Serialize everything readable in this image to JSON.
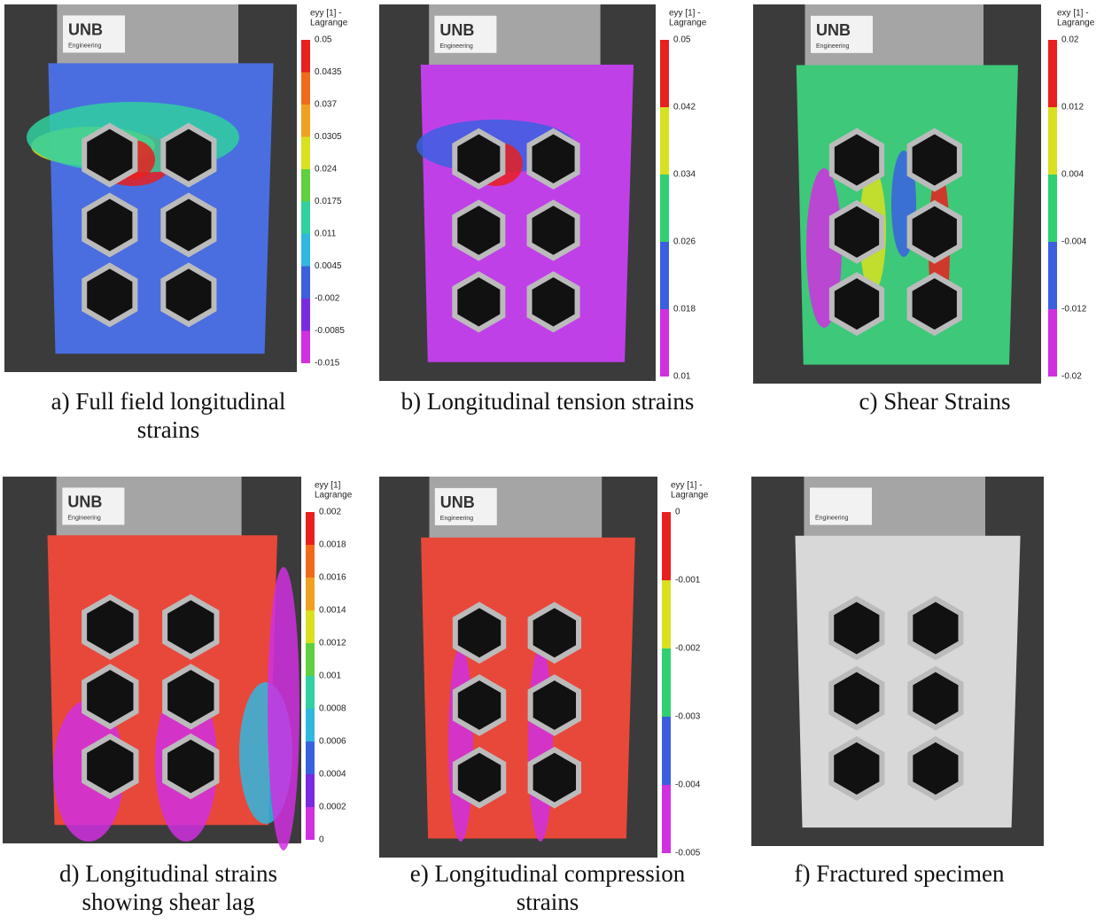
{
  "panels": [
    {
      "caption": [
        "a) Full field longitudinal",
        "strains"
      ],
      "logo": {
        "name": "UNB",
        "sub": "Engineering"
      },
      "legend": {
        "title": [
          "eyy [1] -",
          "Lagrange"
        ],
        "labels": [
          "0.05",
          "0.0435",
          "0.037",
          "0.0305",
          "0.024",
          "0.0175",
          "0.011",
          "0.0045",
          "-0.002",
          "-0.0085",
          "-0.015"
        ]
      }
    },
    {
      "caption": [
        "b) Longitudinal tension strains"
      ],
      "logo": {
        "name": "UNB",
        "sub": "Engineering"
      },
      "legend": {
        "title": [
          "eyy [1] -",
          "Lagrange"
        ],
        "labels": [
          "0.05",
          "0.042",
          "0.034",
          "0.026",
          "0.018",
          "0.01"
        ]
      }
    },
    {
      "caption": [
        "c) Shear Strains"
      ],
      "logo": {
        "name": "UNB",
        "sub": "Engineering"
      },
      "legend": {
        "title": [
          "exy [1] -",
          "Lagrange"
        ],
        "labels": [
          "0.02",
          "0.012",
          "0.004",
          "-0.004",
          "-0.012",
          "-0.02"
        ]
      }
    },
    {
      "caption": [
        "d) Longitudinal strains",
        "showing shear lag"
      ],
      "logo": {
        "name": "UNB",
        "sub": "Engineering"
      },
      "legend": {
        "title": [
          "eyy [1]",
          "Lagrange"
        ],
        "labels": [
          "0.002",
          "0.0018",
          "0.0016",
          "0.0014",
          "0.0012",
          "0.001",
          "0.0008",
          "0.0006",
          "0.0004",
          "0.0002",
          "0"
        ]
      }
    },
    {
      "caption": [
        "e) Longitudinal compression",
        "strains"
      ],
      "logo": {
        "name": "UNB",
        "sub": "Engineering"
      },
      "legend": {
        "title": [
          "eyy [1] -",
          "Lagrange"
        ],
        "labels": [
          "0",
          "-0.001",
          "-0.002",
          "-0.003",
          "-0.004",
          "-0.005"
        ]
      }
    },
    {
      "caption": [
        "f) Fractured specimen"
      ],
      "logo": {
        "sub": "Engineering"
      }
    }
  ]
}
